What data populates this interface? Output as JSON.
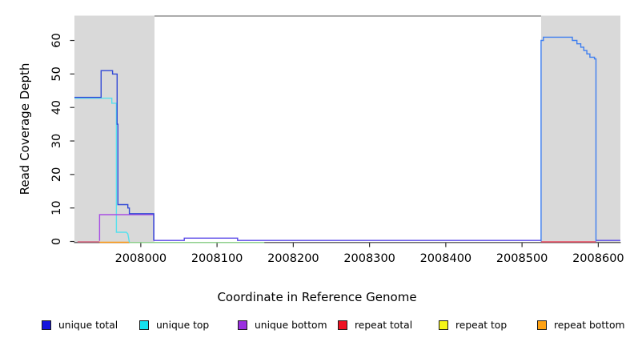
{
  "figure": {
    "x_axis_title": "Coordinate in Reference Genome",
    "y_axis_title": "Read Coverage Depth"
  },
  "legend": {
    "items": [
      {
        "label": "unique total",
        "color": "#1414dd"
      },
      {
        "label": "unique top",
        "color": "#16e2ee"
      },
      {
        "label": "unique bottom",
        "color": "#9a30e0"
      },
      {
        "label": "repeat total",
        "color": "#ee1122"
      },
      {
        "label": "repeat top",
        "color": "#f5f518"
      },
      {
        "label": "repeat bottom",
        "color": "#ffa213"
      }
    ]
  },
  "chart_data": {
    "type": "line",
    "subtype": "step-coverage-plot",
    "title": "",
    "xlabel": "Coordinate in Reference Genome",
    "ylabel": "Read Coverage Depth",
    "xlim": [
      2007913,
      2008629
    ],
    "ylim": [
      0,
      67.3
    ],
    "grid": false,
    "legend_position": "bottom",
    "x_ticks": [
      2008000,
      2008100,
      2008200,
      2008300,
      2008400,
      2008500,
      2008600
    ],
    "x_tick_labels": [
      "2008000",
      "2008100",
      "2008200",
      "2008300",
      "2008400",
      "2008500",
      "2008600"
    ],
    "y_ticks": [
      0,
      10,
      20,
      30,
      40,
      50,
      60
    ],
    "y_tick_labels": [
      "0",
      "10",
      "20",
      "30",
      "40",
      "50",
      "60"
    ],
    "shaded_regions": [
      {
        "x1": 2007913,
        "x2": 2008018,
        "color": "#d9d9d9"
      },
      {
        "x1": 2008525,
        "x2": 2008629,
        "color": "#d9d9d9"
      }
    ],
    "box_top_segment": {
      "x1": 2008018,
      "x2": 2008525,
      "color": "#7b7b7b"
    },
    "series": [
      {
        "name": "repeat-total-baseline-left",
        "legend": "repeat total",
        "color": "#d4627e",
        "dy": 0.5,
        "points": [
          [
            2007917,
            0
          ],
          [
            2007946,
            0
          ]
        ]
      },
      {
        "name": "repeat-bottom-baseline",
        "legend": "repeat bottom",
        "color": "#ff9913",
        "dy": 1.0,
        "points": [
          [
            2007946,
            0
          ],
          [
            2007985,
            0
          ]
        ]
      },
      {
        "name": "repeat-top-over-unique-top-baseline",
        "legend": "repeat top + unique top overlap",
        "color": "#8fd68c",
        "dy": 1.3,
        "points": [
          [
            2007985,
            0
          ],
          [
            2008162,
            0
          ]
        ]
      },
      {
        "name": "repeat-total-baseline-right",
        "legend": "repeat total",
        "color": "#e8495e",
        "dy": 0.5,
        "points": [
          [
            2008525,
            0
          ],
          [
            2008597,
            0
          ]
        ]
      },
      {
        "name": "unique-top-left",
        "legend": "unique top",
        "color": "#55e0ee",
        "dy": 1.0,
        "points": [
          [
            2007913,
            43
          ],
          [
            2007962,
            43
          ],
          [
            2007962,
            41.5
          ],
          [
            2007968,
            41.5
          ],
          [
            2007968,
            3
          ],
          [
            2007981,
            3
          ],
          [
            2007983,
            2.5
          ],
          [
            2007985,
            0
          ]
        ]
      },
      {
        "name": "unique-bottom-left-block",
        "legend": "unique bottom",
        "color": "#a84fe3",
        "dy": 0,
        "points": [
          [
            2007946,
            0.2
          ],
          [
            2007946,
            8
          ],
          [
            2008017,
            8
          ],
          [
            2008017,
            0.2
          ]
        ]
      },
      {
        "name": "unique-total-left-peak",
        "legend": "unique total",
        "color": "#3048d6",
        "dy": 0,
        "points": [
          [
            2007913,
            43
          ],
          [
            2007948,
            43
          ],
          [
            2007948,
            51
          ],
          [
            2007963,
            51
          ],
          [
            2007963,
            50
          ],
          [
            2007969,
            50
          ],
          [
            2007969,
            35
          ],
          [
            2007970,
            35
          ],
          [
            2007970,
            11
          ],
          [
            2007983,
            11
          ],
          [
            2007983,
            10
          ],
          [
            2007985,
            10
          ],
          [
            2007985,
            8.3
          ],
          [
            2008017,
            8.3
          ],
          [
            2008017,
            0.3
          ]
        ]
      },
      {
        "name": "unique-baseline-middle-with-bump",
        "legend": "unique total + unique bottom overlap",
        "color": "#5847e8",
        "dy": 0,
        "points": [
          [
            2008017,
            0.3
          ],
          [
            2008057,
            0.3
          ],
          [
            2008057,
            1
          ],
          [
            2008127,
            1
          ],
          [
            2008127,
            0.3
          ],
          [
            2008525,
            0.3
          ]
        ]
      },
      {
        "name": "unique-baseline-far-right",
        "legend": "unique total + unique bottom overlap",
        "color": "#5847e8",
        "dy": 0,
        "points": [
          [
            2008597,
            0.3
          ],
          [
            2008629,
            0.3
          ]
        ]
      },
      {
        "name": "unique-total-right-block",
        "legend": "unique total",
        "color": "#3d7ef0",
        "dy": 0,
        "points": [
          [
            2008525,
            0
          ],
          [
            2008525,
            60
          ],
          [
            2008528,
            60
          ],
          [
            2008528,
            61
          ],
          [
            2008566,
            61
          ],
          [
            2008566,
            60
          ],
          [
            2008572,
            60
          ],
          [
            2008572,
            59
          ],
          [
            2008577,
            59
          ],
          [
            2008577,
            58
          ],
          [
            2008581,
            58
          ],
          [
            2008581,
            57
          ],
          [
            2008585,
            57
          ],
          [
            2008585,
            56
          ],
          [
            2008589,
            56
          ],
          [
            2008589,
            55
          ],
          [
            2008595,
            55
          ],
          [
            2008595,
            54.5
          ],
          [
            2008597,
            54.5
          ],
          [
            2008597,
            0
          ]
        ]
      }
    ]
  }
}
